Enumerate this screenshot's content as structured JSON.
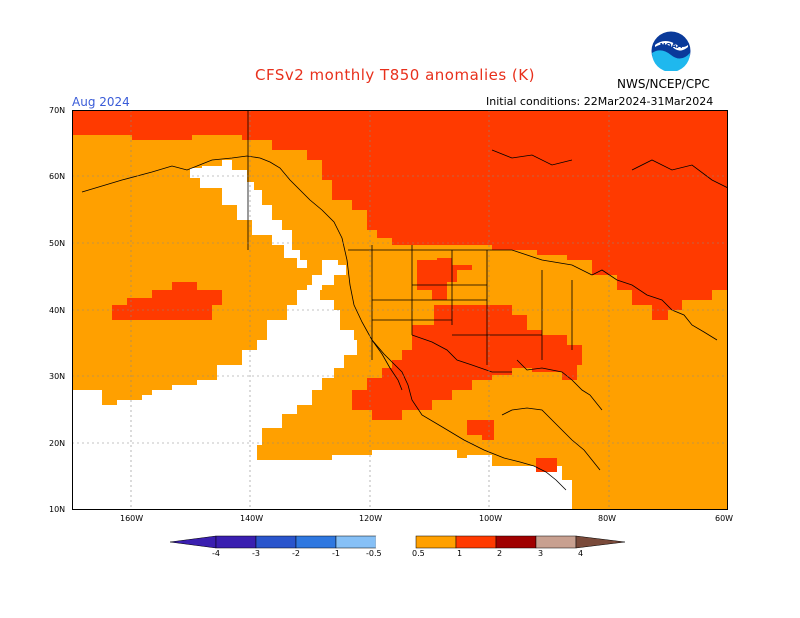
{
  "header": {
    "title": "CFSv2 monthly T850 anomalies (K)",
    "month": "Aug 2024",
    "initial_conditions": "Initial conditions: 22Mar2024-31Mar2024",
    "agency": "NWS/NCEP/CPC",
    "logo_text": "NOAA"
  },
  "map": {
    "lat_labels": [
      "70N",
      "60N",
      "50N",
      "40N",
      "30N",
      "20N",
      "10N"
    ],
    "lon_labels": [
      "160W",
      "140W",
      "120W",
      "100W",
      "80W",
      "60W"
    ],
    "colors": {
      "white": "#ffffff",
      "orange": "#ffa000",
      "red": "#ff3a00",
      "line": "#000000"
    }
  },
  "legend": {
    "labels": [
      "-4",
      "-3",
      "-2",
      "-1",
      "-0.5",
      "0.5",
      "1",
      "2",
      "3",
      "4"
    ],
    "colors": [
      "#3a1fb0",
      "#2a55cc",
      "#2f78e0",
      "#5aa4f0",
      "#86c0f6",
      "#ffffff",
      "#ffa000",
      "#ff3a00",
      "#a00000",
      "#c8a090",
      "#7a4a3a"
    ]
  }
}
